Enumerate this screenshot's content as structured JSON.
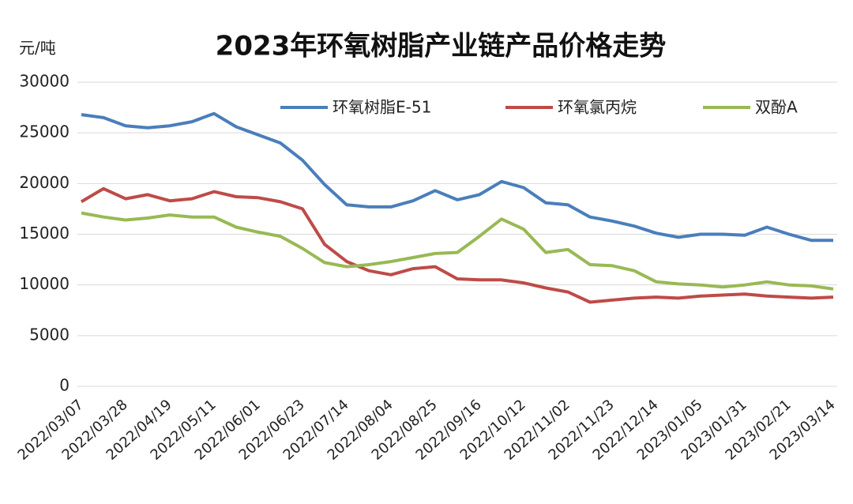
{
  "chart_data": {
    "type": "line",
    "title": "2023年环氧树脂产业链产品价格走势",
    "y_label": "元/吨",
    "categories": [
      "2022/03/07",
      null,
      "2022/03/28",
      null,
      "2022/04/19",
      null,
      "2022/05/11",
      null,
      "2022/06/01",
      null,
      "2022/06/23",
      null,
      "2022/07/14",
      null,
      "2022/08/04",
      null,
      "2022/08/25",
      null,
      "2022/09/16",
      null,
      "2022/10/12",
      null,
      "2022/11/02",
      null,
      "2022/11/23",
      null,
      "2022/12/14",
      null,
      "2023/01/05",
      null,
      "2023/01/31",
      null,
      "2023/02/21",
      null,
      "2023/03/14"
    ],
    "series": [
      {
        "name": "环氧树脂E-51",
        "color": "#4a7ebb",
        "values": [
          26800,
          26500,
          25700,
          25500,
          25700,
          26100,
          26900,
          25600,
          24800,
          24000,
          22300,
          19900,
          17900,
          17700,
          17700,
          18300,
          19300,
          18400,
          18900,
          20200,
          19600,
          18100,
          17900,
          16700,
          16300,
          15800,
          15100,
          14700,
          15000,
          15000,
          14900,
          15700,
          15000,
          14400,
          14400
        ]
      },
      {
        "name": "环氧氯丙烷",
        "color": "#be4b48",
        "values": [
          18200,
          19500,
          18500,
          18900,
          18300,
          18500,
          19200,
          18700,
          18600,
          18200,
          17500,
          14000,
          12300,
          11400,
          11000,
          11600,
          11800,
          10600,
          10500,
          10500,
          10200,
          9700,
          9300,
          8300,
          8500,
          8700,
          8800,
          8700,
          8900,
          9000,
          9100,
          8900,
          8800,
          8700,
          8800
        ]
      },
      {
        "name": "双酚A",
        "color": "#98b954",
        "values": [
          17100,
          16700,
          16400,
          16600,
          16900,
          16700,
          16700,
          15700,
          15200,
          14800,
          13600,
          12200,
          11800,
          12000,
          12300,
          12700,
          13100,
          13200,
          14800,
          16500,
          15500,
          13200,
          13500,
          12000,
          11900,
          11400,
          10300,
          10100,
          10000,
          9800,
          10000,
          10300,
          10000,
          9900,
          9600
        ]
      }
    ],
    "ylim": [
      0,
      30000
    ],
    "yticks": [
      0,
      5000,
      10000,
      15000,
      20000,
      25000,
      30000
    ],
    "grid": true
  }
}
